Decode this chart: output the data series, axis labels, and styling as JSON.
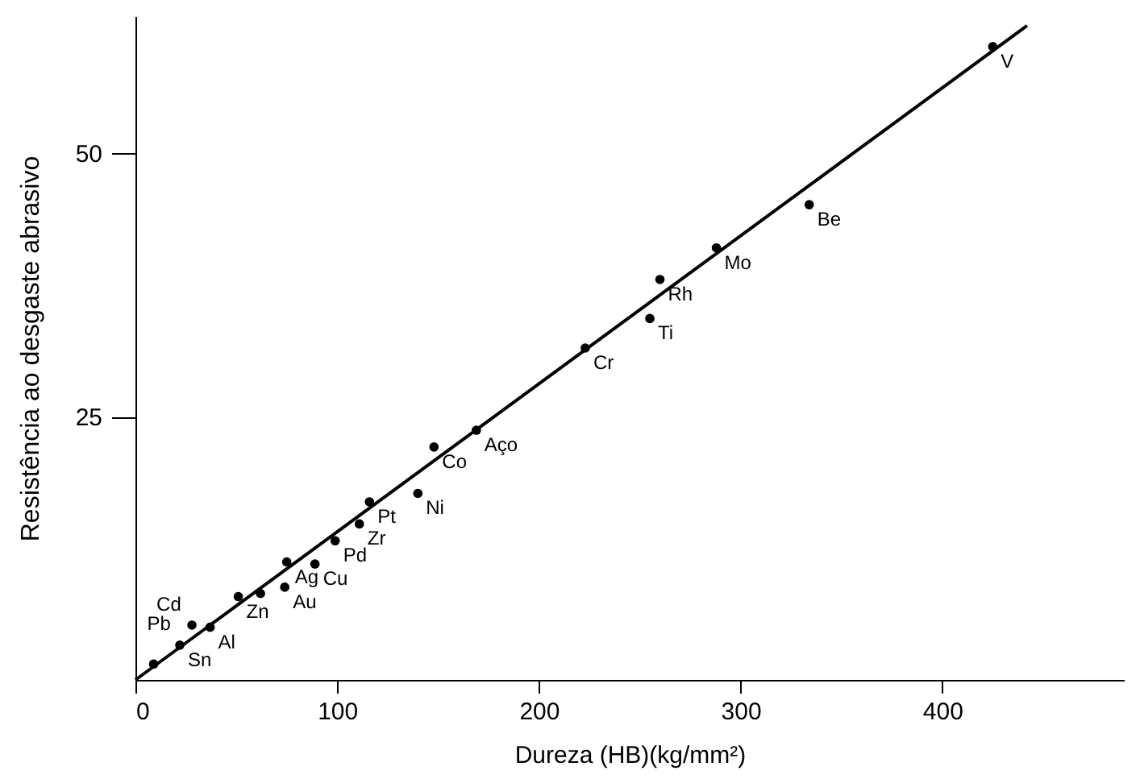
{
  "chart_data": {
    "type": "scatter",
    "xlabel": "Dureza (HB)(kg/mm²)",
    "ylabel": "Resistência ao desgaste abrasivo",
    "xlim": [
      0,
      490
    ],
    "ylim": [
      0,
      63
    ],
    "xticks": [
      0,
      100,
      200,
      300,
      400
    ],
    "yticks": [
      25,
      50
    ],
    "grid": false,
    "series": [
      {
        "marker": "circle",
        "color": "#000000",
        "x": [
          9,
          22,
          28,
          37,
          51,
          62,
          74,
          75,
          89,
          99,
          111,
          116,
          140,
          148,
          169,
          223,
          255,
          260,
          288,
          334,
          425
        ],
        "values": [
          1.5,
          3.3,
          5.2,
          5,
          7.9,
          8.2,
          8.8,
          11.2,
          11,
          13.2,
          14.8,
          16.9,
          17.7,
          22.1,
          23.7,
          31.5,
          34.3,
          38,
          41,
          45.1,
          60.1
        ]
      },
      {
        "type": "line",
        "color": "#000000",
        "x": [
          0,
          442
        ],
        "values": [
          0,
          62.1
        ]
      }
    ],
    "annotations": [
      {
        "text": "Pb",
        "x": 9,
        "y": 1.5
      },
      {
        "text": "Sn",
        "x": 22,
        "y": 3.3
      },
      {
        "text": "Cd",
        "x": 28,
        "y": 5.2
      },
      {
        "text": "Al",
        "x": 37,
        "y": 5
      },
      {
        "text": "Zn",
        "x": 51,
        "y": 7.9
      },
      {
        "text": "Au",
        "x": 74,
        "y": 8.8
      },
      {
        "text": "Ag",
        "x": 75,
        "y": 11.2
      },
      {
        "text": "Cu",
        "x": 89,
        "y": 11
      },
      {
        "text": "Pd",
        "x": 99,
        "y": 13.2
      },
      {
        "text": "Zr",
        "x": 111,
        "y": 14.8
      },
      {
        "text": "Pt",
        "x": 116,
        "y": 16.9
      },
      {
        "text": "Ni",
        "x": 140,
        "y": 17.7
      },
      {
        "text": "Co",
        "x": 148,
        "y": 22.1
      },
      {
        "text": "Aço",
        "x": 169,
        "y": 23.7
      },
      {
        "text": "Cr",
        "x": 223,
        "y": 31.5
      },
      {
        "text": "Ti",
        "x": 255,
        "y": 34.3
      },
      {
        "text": "Rh",
        "x": 260,
        "y": 38
      },
      {
        "text": "Mo",
        "x": 288,
        "y": 41
      },
      {
        "text": "Be",
        "x": 334,
        "y": 45.1
      },
      {
        "text": "V",
        "x": 425,
        "y": 60.1
      }
    ]
  }
}
